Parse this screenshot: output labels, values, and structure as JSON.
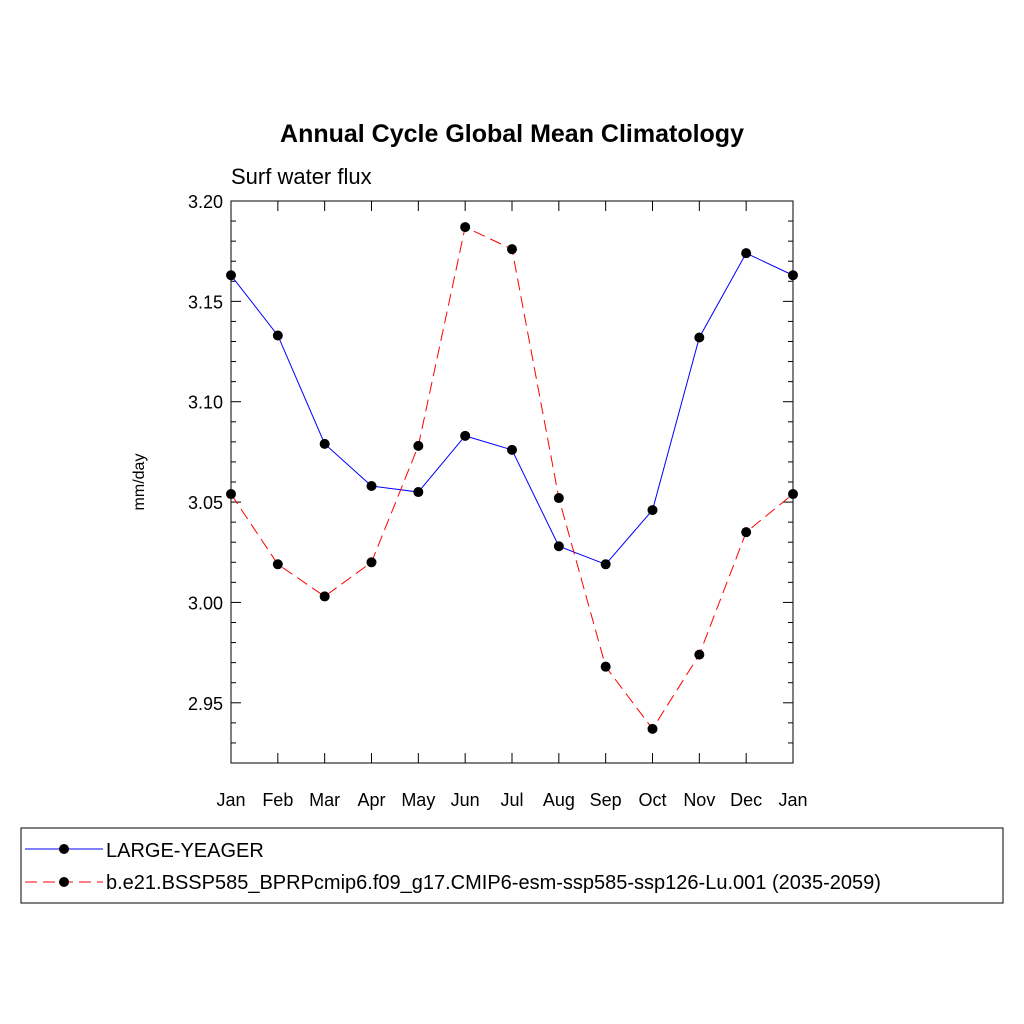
{
  "chart_data": {
    "type": "line",
    "title": "Annual Cycle Global Mean Climatology",
    "subtitle": "Surf water flux",
    "xlabel": "",
    "ylabel": "mm/day",
    "categories": [
      "Jan",
      "Feb",
      "Mar",
      "Apr",
      "May",
      "Jun",
      "Jul",
      "Aug",
      "Sep",
      "Oct",
      "Nov",
      "Dec",
      "Jan"
    ],
    "ylim": [
      2.92,
      3.2
    ],
    "yticks": [
      "3.20",
      "3.15",
      "3.10",
      "3.05",
      "3.00",
      "2.95"
    ],
    "ytick_values": [
      3.2,
      3.15,
      3.1,
      3.05,
      3.0,
      2.95
    ],
    "grid": false,
    "legend_position": "bottom",
    "series": [
      {
        "name": "LARGE-YEAGER",
        "color": "#0000ff",
        "dash": "solid",
        "values": [
          3.163,
          3.133,
          3.079,
          3.058,
          3.055,
          3.083,
          3.076,
          3.028,
          3.019,
          3.046,
          3.132,
          3.174,
          3.163
        ]
      },
      {
        "name": "b.e21.BSSP585_BPRPcmip6.f09_g17.CMIP6-esm-ssp585-ssp126-Lu.001 (2035-2059)",
        "color": "#ff0000",
        "dash": "dashed",
        "values": [
          3.054,
          3.019,
          3.003,
          3.02,
          3.078,
          3.187,
          3.176,
          3.052,
          2.968,
          2.937,
          2.974,
          3.035,
          3.054
        ]
      }
    ]
  }
}
